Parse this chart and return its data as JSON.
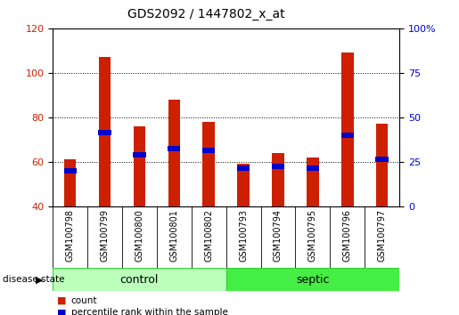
{
  "title": "GDS2092 / 1447802_x_at",
  "samples": [
    "GSM100798",
    "GSM100799",
    "GSM100800",
    "GSM100801",
    "GSM100802",
    "GSM100793",
    "GSM100794",
    "GSM100795",
    "GSM100796",
    "GSM100797"
  ],
  "counts": [
    61,
    107,
    76,
    88,
    78,
    59,
    64,
    62,
    109,
    77
  ],
  "percentile_values": [
    56,
    73,
    63,
    66,
    65,
    57,
    58,
    57,
    72,
    61
  ],
  "percentile_bar_height": 2.5,
  "ymin": 40,
  "ymax": 120,
  "left_yticks": [
    40,
    60,
    80,
    100,
    120
  ],
  "right_yticks": [
    0,
    25,
    50,
    75,
    100
  ],
  "bar_color": "#cc2000",
  "percentile_color": "#0000cc",
  "bar_width": 0.35,
  "groups": [
    {
      "label": "control",
      "start": 0,
      "end": 5,
      "facecolor": "#bbffbb",
      "edgecolor": "#33cc33"
    },
    {
      "label": "septic",
      "start": 5,
      "end": 10,
      "facecolor": "#44ee44",
      "edgecolor": "#33cc33"
    }
  ],
  "group_label_prefix": "disease state",
  "legend_items": [
    {
      "label": "count",
      "color": "#cc2000"
    },
    {
      "label": "percentile rank within the sample",
      "color": "#0000cc"
    }
  ],
  "tick_label_color_left": "#cc2000",
  "tick_label_color_right": "#0000cc",
  "tick_area_facecolor": "#dddddd",
  "fig_facecolor": "white"
}
